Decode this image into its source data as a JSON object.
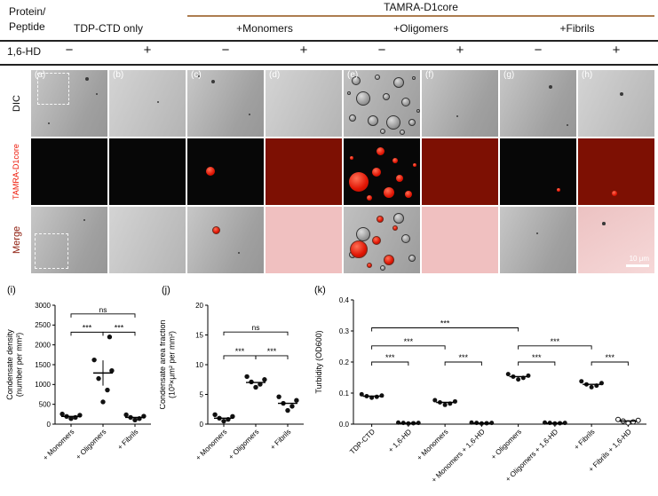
{
  "header": {
    "protein_label": "Protein/\nPeptide",
    "group_label": "TAMRA-D1core",
    "col_groups": [
      "TDP-CTD only",
      "+Monomers",
      "+Oligomers",
      "+Fibrils"
    ],
    "hd_label": "1,6-HD",
    "hd_signs": [
      "−",
      "+",
      "−",
      "+",
      "−",
      "+",
      "−",
      "+"
    ]
  },
  "micrographs": {
    "row_labels": [
      "DIC",
      "TAMRA-D1core",
      "Merge"
    ],
    "panel_labels": [
      "(a)",
      "(b)",
      "(c)",
      "(d)",
      "(e)",
      "(f)",
      "(g)",
      "(h)"
    ],
    "scale_bar_label": "10 μm"
  },
  "colors": {
    "tamra_red": "#e01504",
    "dark_red_panel": "#7d1003",
    "pink_panel": "#f0c0c0",
    "tan_rule": "#ad7d50",
    "red_row_label": "#ee1504",
    "merge_row_label": "#8a1404"
  },
  "chart_data": [
    {
      "id": "i",
      "type": "scatter",
      "panel_label": "(i)",
      "ylabel_lines": [
        "Condensate density",
        "(number per mm²)"
      ],
      "categories": [
        "+ Monomers",
        "+ Oligomers",
        "+ Fibrils"
      ],
      "ylim": [
        0,
        3000
      ],
      "ytick_values": [
        0,
        500,
        1000,
        1500,
        2000,
        2500,
        3000
      ],
      "ytick_labels": [
        "0",
        "500",
        "1000",
        "1500",
        "2000",
        "2500",
        "3000"
      ],
      "points": [
        [
          140,
          170,
          195,
          225,
          255
        ],
        [
          560,
          860,
          1150,
          1350,
          1620,
          2200
        ],
        [
          105,
          140,
          170,
          200,
          235
        ]
      ],
      "means": [
        195,
        1290,
        170
      ],
      "errors": [
        null,
        320,
        null
      ],
      "brackets": [
        {
          "a": 0,
          "b": 1,
          "y": 2320,
          "label": "***"
        },
        {
          "a": 1,
          "b": 2,
          "y": 2320,
          "label": "***"
        },
        {
          "a": 0,
          "b": 2,
          "y": 2780,
          "label": "ns"
        }
      ]
    },
    {
      "id": "j",
      "type": "scatter",
      "panel_label": "(j)",
      "ylabel_lines": [
        "Condensate area fraction",
        "(10³×μm² per mm²)"
      ],
      "categories": [
        "+ Monomers",
        "+ Oligomers",
        "+ Fibrils"
      ],
      "ylim": [
        0,
        20
      ],
      "ytick_values": [
        0,
        5,
        10,
        15,
        20
      ],
      "ytick_labels": [
        "0",
        "5",
        "10",
        "15",
        "20"
      ],
      "points": [
        [
          0.5,
          0.8,
          1.0,
          1.3,
          1.6
        ],
        [
          6.2,
          6.7,
          7.1,
          7.5,
          8.0
        ],
        [
          2.3,
          3.0,
          3.5,
          4.0,
          4.6
        ]
      ],
      "means": [
        1.0,
        7.0,
        3.5
      ],
      "errors": [
        null,
        null,
        null
      ],
      "brackets": [
        {
          "a": 0,
          "b": 1,
          "y": 11.5,
          "label": "***"
        },
        {
          "a": 1,
          "b": 2,
          "y": 11.5,
          "label": "***"
        },
        {
          "a": 0,
          "b": 2,
          "y": 15.5,
          "label": "ns"
        }
      ]
    },
    {
      "id": "k",
      "type": "scatter",
      "panel_label": "(k)",
      "ylabel_lines": [
        "Turbidity (OD600)"
      ],
      "categories": [
        "TDP-CTD",
        "+ 1,6-HD",
        "+ Monomers",
        "+ Monomers + 1,6-HD",
        "+ Oligomers",
        "+ Oligomers + 1,6-HD",
        "+ Fibrils",
        "+ Fibrils + 1,6-HD"
      ],
      "ylim": [
        0,
        0.4
      ],
      "ytick_values": [
        0,
        0.1,
        0.2,
        0.3,
        0.4
      ],
      "ytick_labels": [
        "0.0",
        "0.1",
        "0.2",
        "0.3",
        "0.4"
      ],
      "points": [
        [
          0.085,
          0.088,
          0.09,
          0.092,
          0.096
        ],
        [
          0.002,
          0.003,
          0.004,
          0.004,
          0.005
        ],
        [
          0.062,
          0.066,
          0.07,
          0.073,
          0.077
        ],
        [
          0.002,
          0.003,
          0.004,
          0.004,
          0.005
        ],
        [
          0.144,
          0.149,
          0.153,
          0.156,
          0.161
        ],
        [
          0.002,
          0.003,
          0.004,
          0.004,
          0.005
        ],
        [
          0.119,
          0.124,
          0.128,
          0.132,
          0.138
        ],
        [
          0.004,
          0.007,
          0.01,
          0.012,
          0.015
        ]
      ],
      "open_indices": [
        7
      ],
      "means": [
        0.09,
        0.003,
        0.07,
        0.003,
        0.153,
        0.003,
        0.128,
        0.01
      ],
      "errors": [],
      "brackets": [
        {
          "a": 0,
          "b": 1,
          "y": 0.2,
          "label": "***"
        },
        {
          "a": 0,
          "b": 2,
          "y": 0.252,
          "label": "***"
        },
        {
          "a": 0,
          "b": 4,
          "y": 0.31,
          "label": "***"
        },
        {
          "a": 2,
          "b": 3,
          "y": 0.2,
          "label": "***"
        },
        {
          "a": 4,
          "b": 5,
          "y": 0.2,
          "label": "***"
        },
        {
          "a": 4,
          "b": 6,
          "y": 0.252,
          "label": "***"
        },
        {
          "a": 6,
          "b": 7,
          "y": 0.2,
          "label": "***"
        }
      ]
    }
  ]
}
